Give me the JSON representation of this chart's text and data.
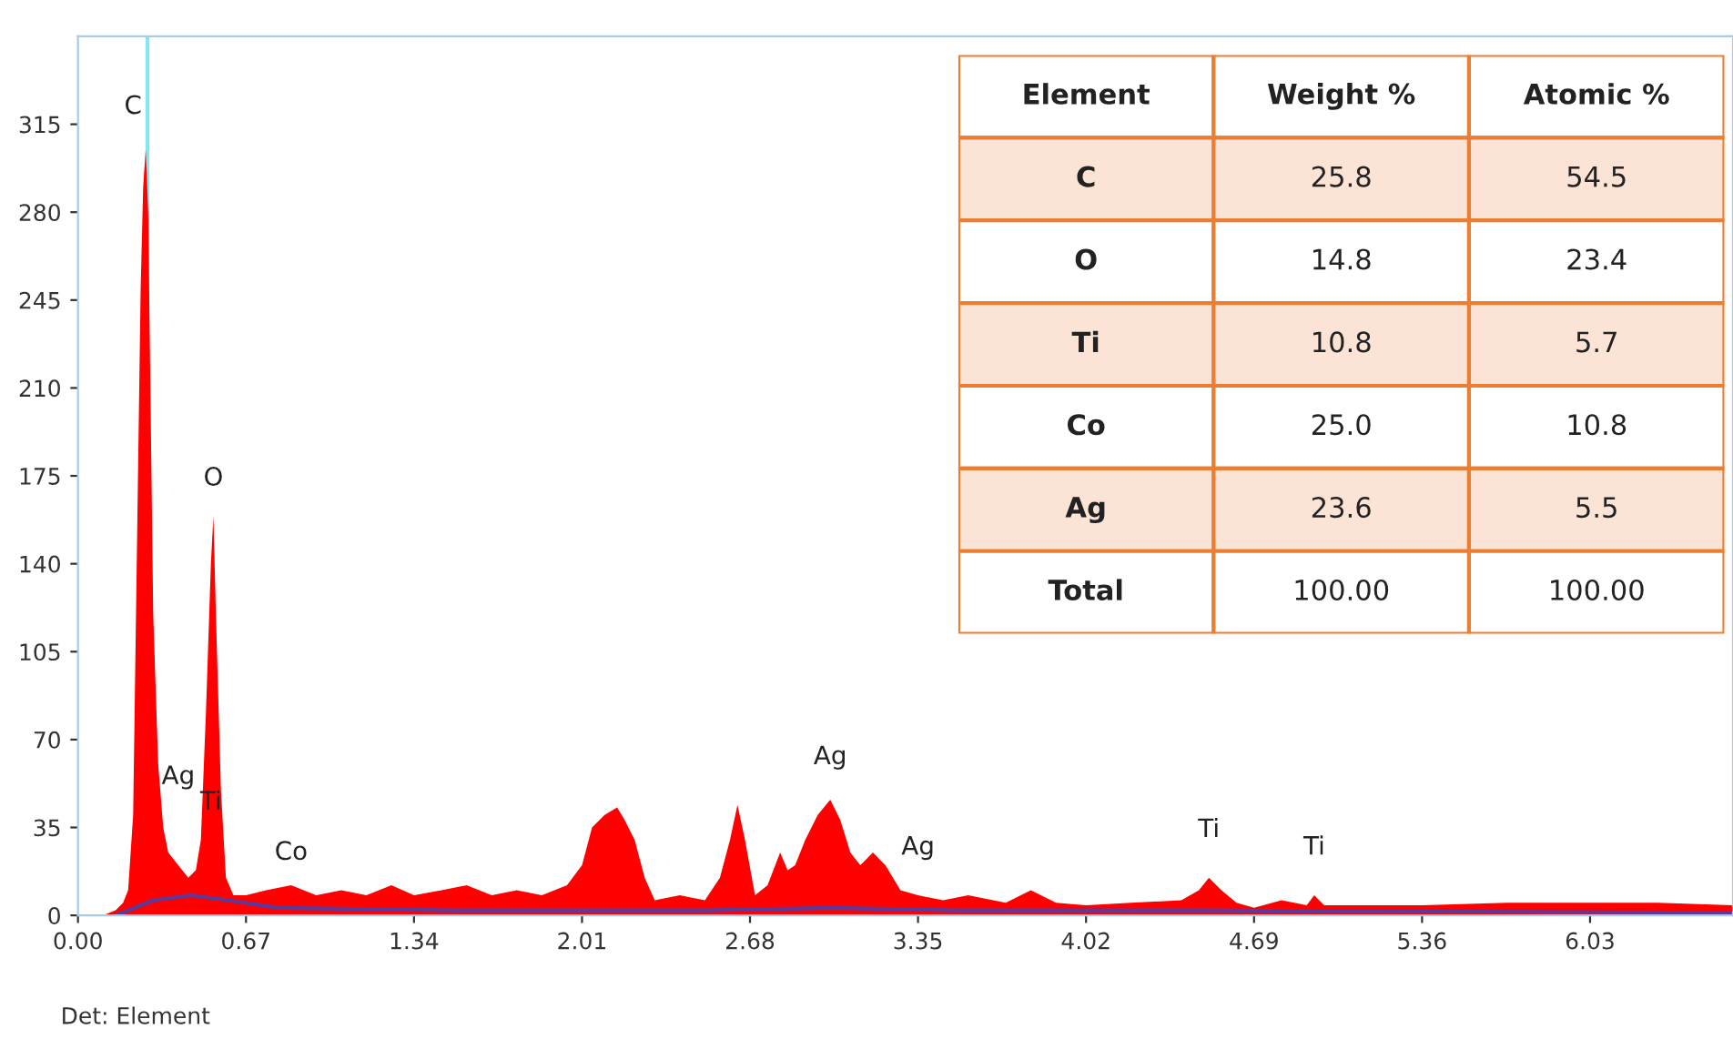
{
  "chart_data": [
    {
      "type": "area",
      "xlim": [
        0,
        6.6
      ],
      "ylim": [
        0,
        350
      ],
      "xticks": [
        {
          "value": 0,
          "label": "0.00"
        },
        {
          "value": 0.67,
          "label": "0.67"
        },
        {
          "value": 1.34,
          "label": "1.34"
        },
        {
          "value": 2.01,
          "label": "2.01"
        },
        {
          "value": 2.68,
          "label": "2.68"
        },
        {
          "value": 3.35,
          "label": "3.35"
        },
        {
          "value": 4.02,
          "label": "4.02"
        },
        {
          "value": 4.69,
          "label": "4.69"
        },
        {
          "value": 5.36,
          "label": "5.36"
        },
        {
          "value": 6.03,
          "label": "6.03"
        }
      ],
      "yticks": [
        0,
        35,
        70,
        105,
        140,
        175,
        210,
        245,
        280,
        315
      ],
      "grid": false,
      "legend": false,
      "series": [
        {
          "type": "area",
          "color": "#ff0000",
          "x": [
            0,
            0.1,
            0.15,
            0.18,
            0.2,
            0.22,
            0.24,
            0.25,
            0.26,
            0.27,
            0.28,
            0.29,
            0.3,
            0.32,
            0.34,
            0.36,
            0.4,
            0.44,
            0.47,
            0.49,
            0.51,
            0.53,
            0.54,
            0.55,
            0.57,
            0.59,
            0.62,
            0.67,
            0.75,
            0.85,
            0.95,
            1.05,
            1.15,
            1.25,
            1.34,
            1.45,
            1.55,
            1.65,
            1.75,
            1.85,
            1.95,
            2.01,
            2.05,
            2.1,
            2.15,
            2.18,
            2.22,
            2.26,
            2.3,
            2.4,
            2.5,
            2.56,
            2.6,
            2.63,
            2.66,
            2.7,
            2.75,
            2.8,
            2.83,
            2.86,
            2.9,
            2.95,
            3.0,
            3.04,
            3.08,
            3.12,
            3.17,
            3.22,
            3.28,
            3.35,
            3.45,
            3.55,
            3.7,
            3.8,
            3.9,
            4.02,
            4.2,
            4.4,
            4.47,
            4.51,
            4.56,
            4.62,
            4.69,
            4.8,
            4.9,
            4.93,
            4.97,
            5.05,
            5.36,
            5.7,
            6.03,
            6.3,
            6.6
          ],
          "values": [
            0,
            0,
            2,
            5,
            10,
            40,
            180,
            250,
            290,
            305,
            280,
            200,
            120,
            60,
            35,
            25,
            20,
            15,
            18,
            30,
            80,
            140,
            159,
            120,
            50,
            15,
            8,
            8,
            10,
            12,
            8,
            10,
            8,
            12,
            8,
            10,
            12,
            8,
            10,
            8,
            12,
            20,
            35,
            40,
            43,
            38,
            30,
            15,
            6,
            8,
            6,
            15,
            30,
            44,
            30,
            8,
            12,
            25,
            18,
            20,
            30,
            40,
            46,
            38,
            25,
            20,
            25,
            20,
            10,
            8,
            6,
            8,
            5,
            10,
            5,
            4,
            5,
            6,
            10,
            15,
            10,
            5,
            3,
            6,
            4,
            8,
            4,
            4,
            4,
            5,
            5,
            5,
            4
          ]
        },
        {
          "type": "line",
          "color": "#5b3a9a",
          "x": [
            0.15,
            0.3,
            0.45,
            0.6,
            0.8,
            1.5,
            2.5,
            3.0,
            3.5,
            4.5,
            6.6
          ],
          "values": [
            0,
            6,
            8,
            6,
            3,
            2,
            2,
            3,
            2,
            2,
            1
          ]
        }
      ],
      "ref_lines": [
        {
          "axis": "x",
          "value": 0.277,
          "color": "#7fe8f0"
        }
      ],
      "annotations": [
        {
          "text": "C",
          "x": 0.27,
          "y": 305
        },
        {
          "text": "O",
          "x": 0.54,
          "y": 159
        },
        {
          "text": "Ag",
          "x": 0.4,
          "y": 20
        },
        {
          "text": "Ti",
          "x": 0.49,
          "y": 30
        },
        {
          "text": "Co",
          "x": 0.85,
          "y": 12
        },
        {
          "text": "Ag",
          "x": 3.0,
          "y": 46
        },
        {
          "text": "Ag",
          "x": 3.35,
          "y": 8
        },
        {
          "text": "Ti",
          "x": 4.51,
          "y": 15
        },
        {
          "text": "Ti",
          "x": 4.93,
          "y": 8
        },
        "Det: Element"
      ]
    },
    {
      "type": "other",
      "annotations": [
        "Element",
        "Weight %",
        "Atomic %",
        "C",
        "25.8",
        "54.5",
        "O",
        "14.8",
        "23.4",
        "Ti",
        "10.8",
        "5.7",
        "Co",
        "25.0",
        "10.8",
        "Ag",
        "23.6",
        "5.5",
        "Total",
        "100.00",
        "100.00"
      ]
    }
  ]
}
